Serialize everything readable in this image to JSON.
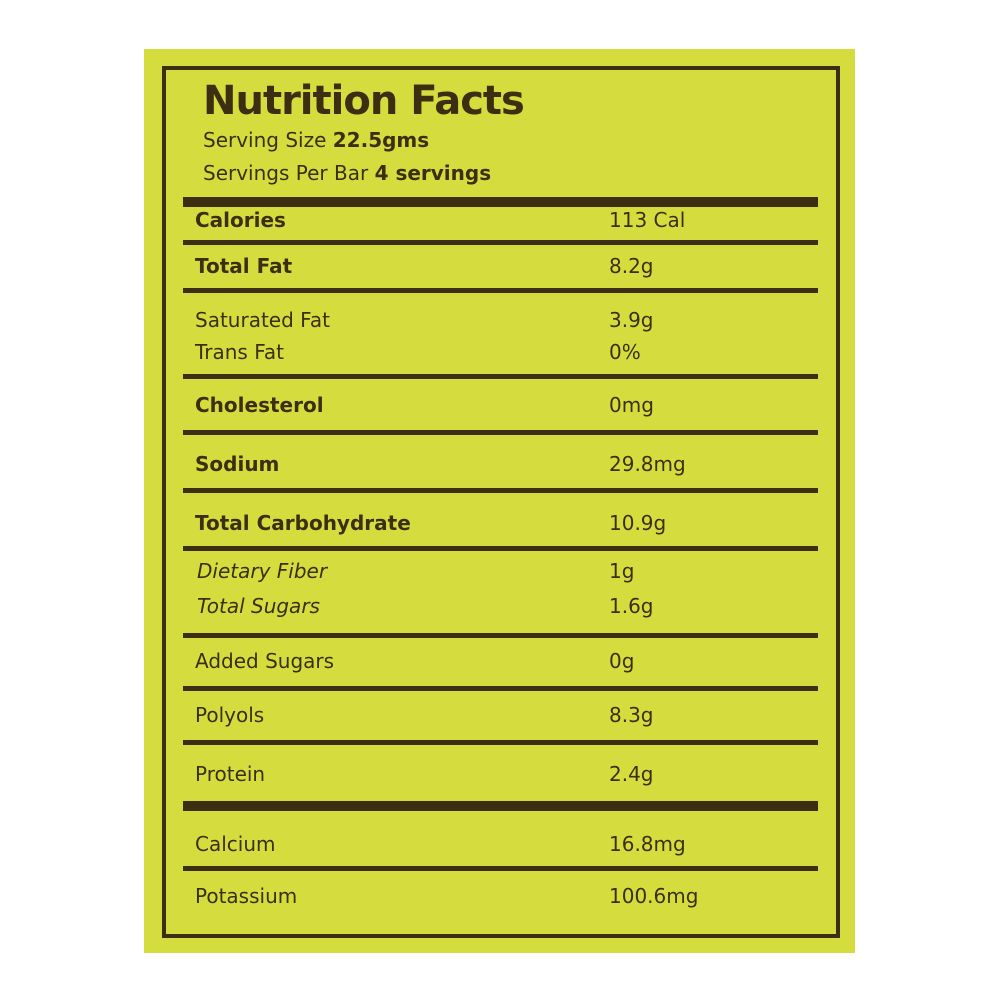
{
  "header": {
    "title": "Nutrition Facts",
    "serving_size_label": "Serving Size",
    "serving_size_value": "22.5gms",
    "servings_label": "Servings Per Bar",
    "servings_value": "4 servings"
  },
  "rows": [
    {
      "label": "Calories",
      "value": "113 Cal",
      "style": "bold"
    },
    {
      "label": "Total Fat",
      "value": "8.2g",
      "style": "bold"
    },
    {
      "label": "Saturated Fat",
      "value": "3.9g",
      "style": "normal"
    },
    {
      "label": "Trans Fat",
      "value": "0%",
      "style": "normal"
    },
    {
      "label": "Cholesterol",
      "value": "0mg",
      "style": "bold"
    },
    {
      "label": "Sodium",
      "value": "29.8mg",
      "style": "bold"
    },
    {
      "label": "Total Carbohydrate",
      "value": "10.9g",
      "style": "bold"
    },
    {
      "label": "Dietary Fiber",
      "value": "1g",
      "style": "italic"
    },
    {
      "label": "Total Sugars",
      "value": "1.6g",
      "style": "italic"
    },
    {
      "label": "Added Sugars",
      "value": "0g",
      "style": "normal"
    },
    {
      "label": "Polyols",
      "value": "8.3g",
      "style": "normal"
    },
    {
      "label": "Protein",
      "value": "2.4g",
      "style": "normal"
    },
    {
      "label": "Calcium",
      "value": "16.8mg",
      "style": "normal"
    },
    {
      "label": "Potassium",
      "value": "100.6mg",
      "style": "normal"
    }
  ],
  "colors": {
    "background": "#d5dd3e",
    "ink": "#3b2f12"
  }
}
